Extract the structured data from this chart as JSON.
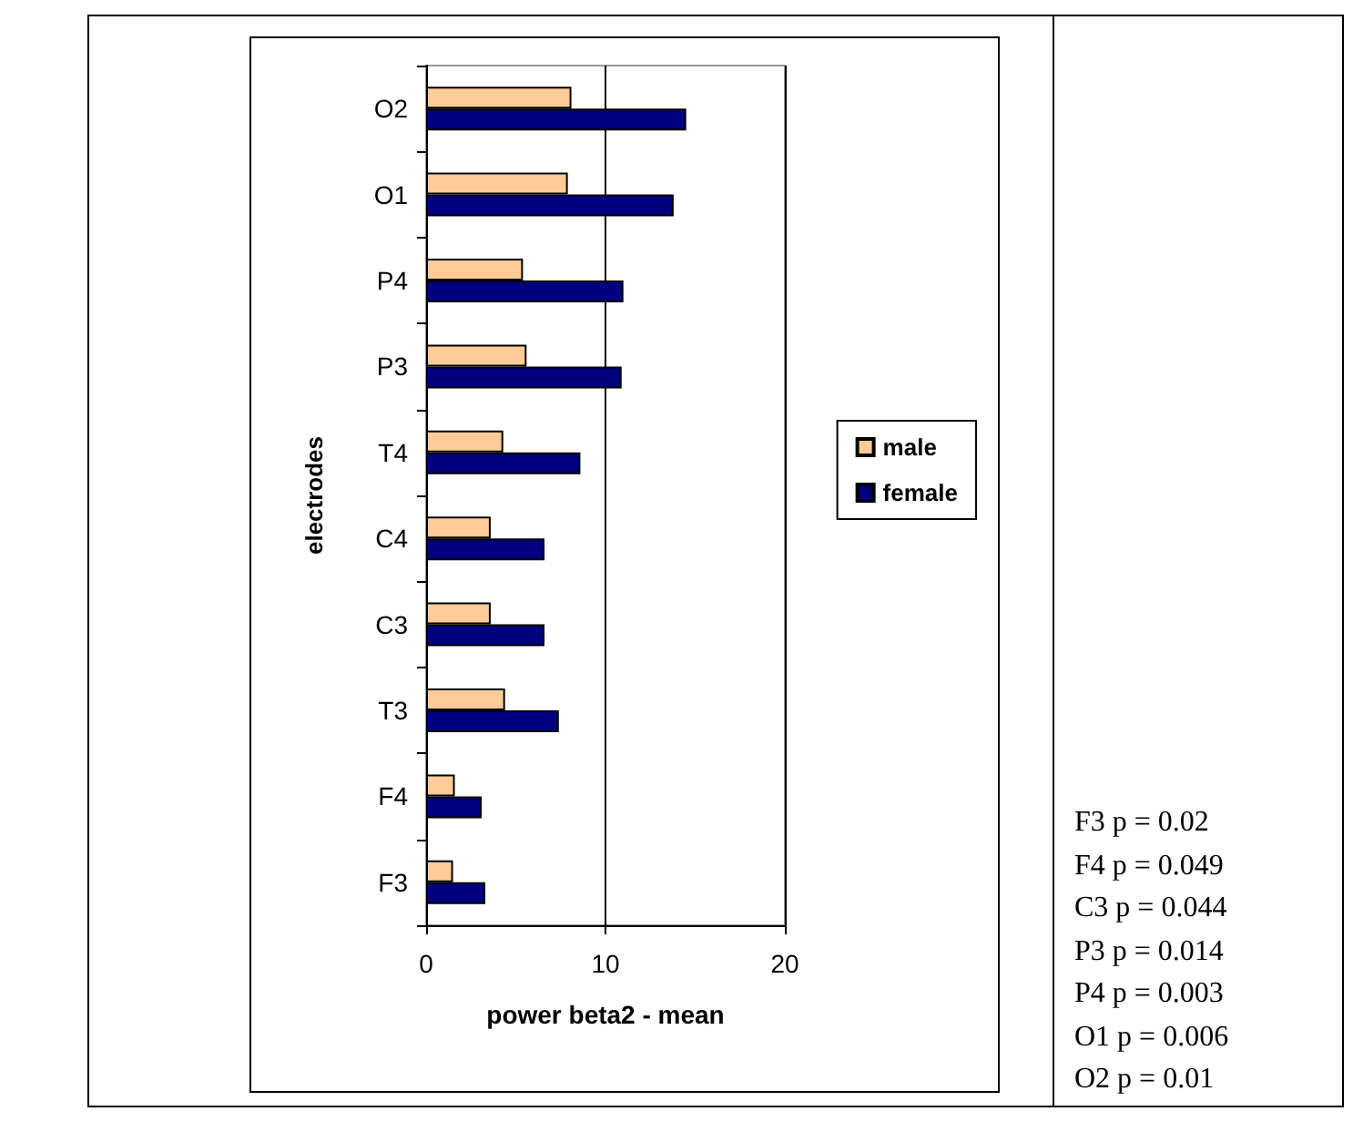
{
  "chart_data": {
    "type": "bar",
    "orientation": "horizontal",
    "xlabel": "power beta2 - mean",
    "ylabel": "electrodes",
    "categories": [
      "O2",
      "O1",
      "P4",
      "P3",
      "T4",
      "C4",
      "C3",
      "T3",
      "F4",
      "F3"
    ],
    "series": [
      {
        "name": "male",
        "color": "#ffcc99",
        "values": [
          8.1,
          7.9,
          5.4,
          5.6,
          4.3,
          3.6,
          3.6,
          4.4,
          1.6,
          1.5
        ]
      },
      {
        "name": "female",
        "color": "#000080",
        "values": [
          14.5,
          13.8,
          11.0,
          10.9,
          8.6,
          6.6,
          6.6,
          7.4,
          3.1,
          3.3
        ]
      }
    ],
    "xlim": [
      0,
      20
    ],
    "xticks": [
      0,
      10,
      20
    ],
    "grid": "x",
    "legend": "right",
    "annotations": [
      "F3 p = 0.02",
      "F4 p = 0.049",
      "C3 p = 0.044",
      "P3 p = 0.014",
      "P4 p = 0.003",
      "O1 p = 0.006",
      "O2 p = 0.01"
    ]
  }
}
